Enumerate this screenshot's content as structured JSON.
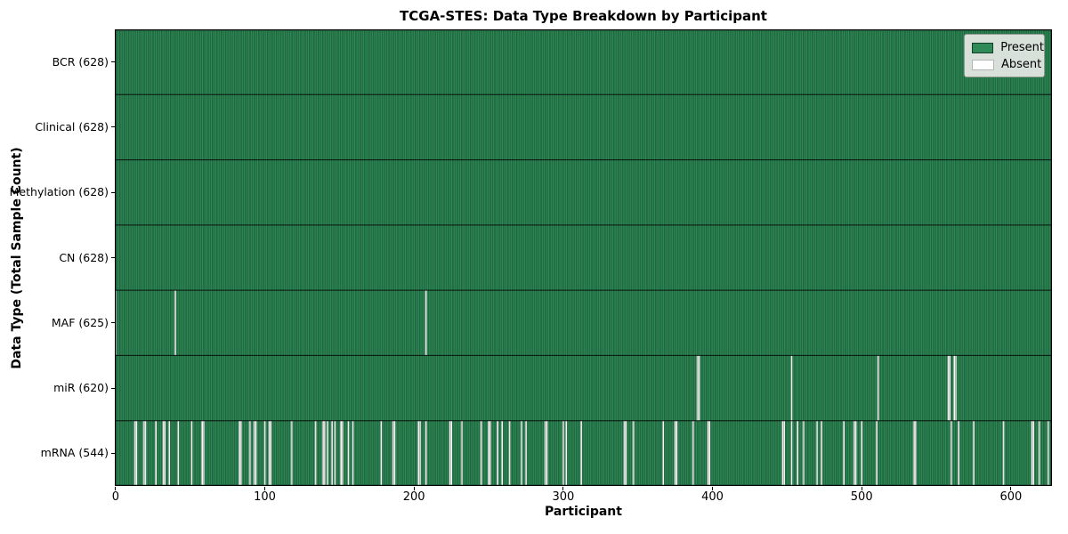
{
  "figure": {
    "title": "TCGA-STES: Data Type Breakdown by Participant",
    "xlabel": "Participant",
    "ylabel": "Data Type (Total Sample Count)"
  },
  "legend": {
    "items": [
      {
        "label": "Present",
        "color": "#2e8b57"
      },
      {
        "label": "Absent",
        "color": "#ffffff"
      }
    ]
  },
  "chart_data": {
    "type": "heatmap",
    "title": "TCGA-STES: Data Type Breakdown by Participant",
    "xlabel": "Participant",
    "ylabel": "Data Type (Total Sample Count)",
    "x_ticks": [
      0,
      100,
      200,
      300,
      400,
      500,
      600
    ],
    "xlim": [
      -0.5,
      627.5
    ],
    "n_participants": 628,
    "present_color": "#2e8b57",
    "absent_color": "#ffffff",
    "grid": false,
    "legend_position": "upper right",
    "legend_entries": [
      "Present",
      "Absent"
    ],
    "rows": [
      {
        "name": "bcr",
        "label": "BCR (628)",
        "data_type": "BCR",
        "present_count": 628,
        "absent_indices": []
      },
      {
        "name": "clinical",
        "label": "Clinical (628)",
        "data_type": "Clinical",
        "present_count": 628,
        "absent_indices": []
      },
      {
        "name": "methylation",
        "label": "Methylation (628)",
        "data_type": "Methylation",
        "present_count": 628,
        "absent_indices": []
      },
      {
        "name": "cn",
        "label": "CN (628)",
        "data_type": "CN",
        "present_count": 628,
        "absent_indices": []
      },
      {
        "name": "maf",
        "label": "MAF (625)",
        "data_type": "MAF",
        "present_count": 625,
        "absent_indices": [
          0,
          40,
          208
        ]
      },
      {
        "name": "mir",
        "label": "miR (620)",
        "data_type": "miR",
        "present_count": 620,
        "absent_indices": [
          390,
          391,
          453,
          511,
          558,
          559,
          562,
          563
        ]
      },
      {
        "name": "mrna",
        "label": "mRNA (544)",
        "data_type": "mRNA",
        "present_count": 544,
        "absent_indices": [
          13,
          14,
          19,
          20,
          27,
          32,
          33,
          36,
          42,
          51,
          58,
          59,
          83,
          84,
          90,
          93,
          94,
          100,
          103,
          104,
          118,
          134,
          139,
          140,
          142,
          145,
          147,
          151,
          152,
          156,
          159,
          178,
          186,
          187,
          203,
          204,
          208,
          224,
          225,
          232,
          245,
          250,
          251,
          256,
          259,
          264,
          272,
          275,
          288,
          289,
          300,
          302,
          312,
          341,
          342,
          347,
          367,
          375,
          376,
          387,
          397,
          398,
          447,
          448,
          453,
          457,
          461,
          470,
          473,
          488,
          495,
          496,
          500,
          510,
          535,
          536,
          560,
          565,
          575,
          595,
          614,
          615,
          619,
          625
        ]
      }
    ]
  }
}
